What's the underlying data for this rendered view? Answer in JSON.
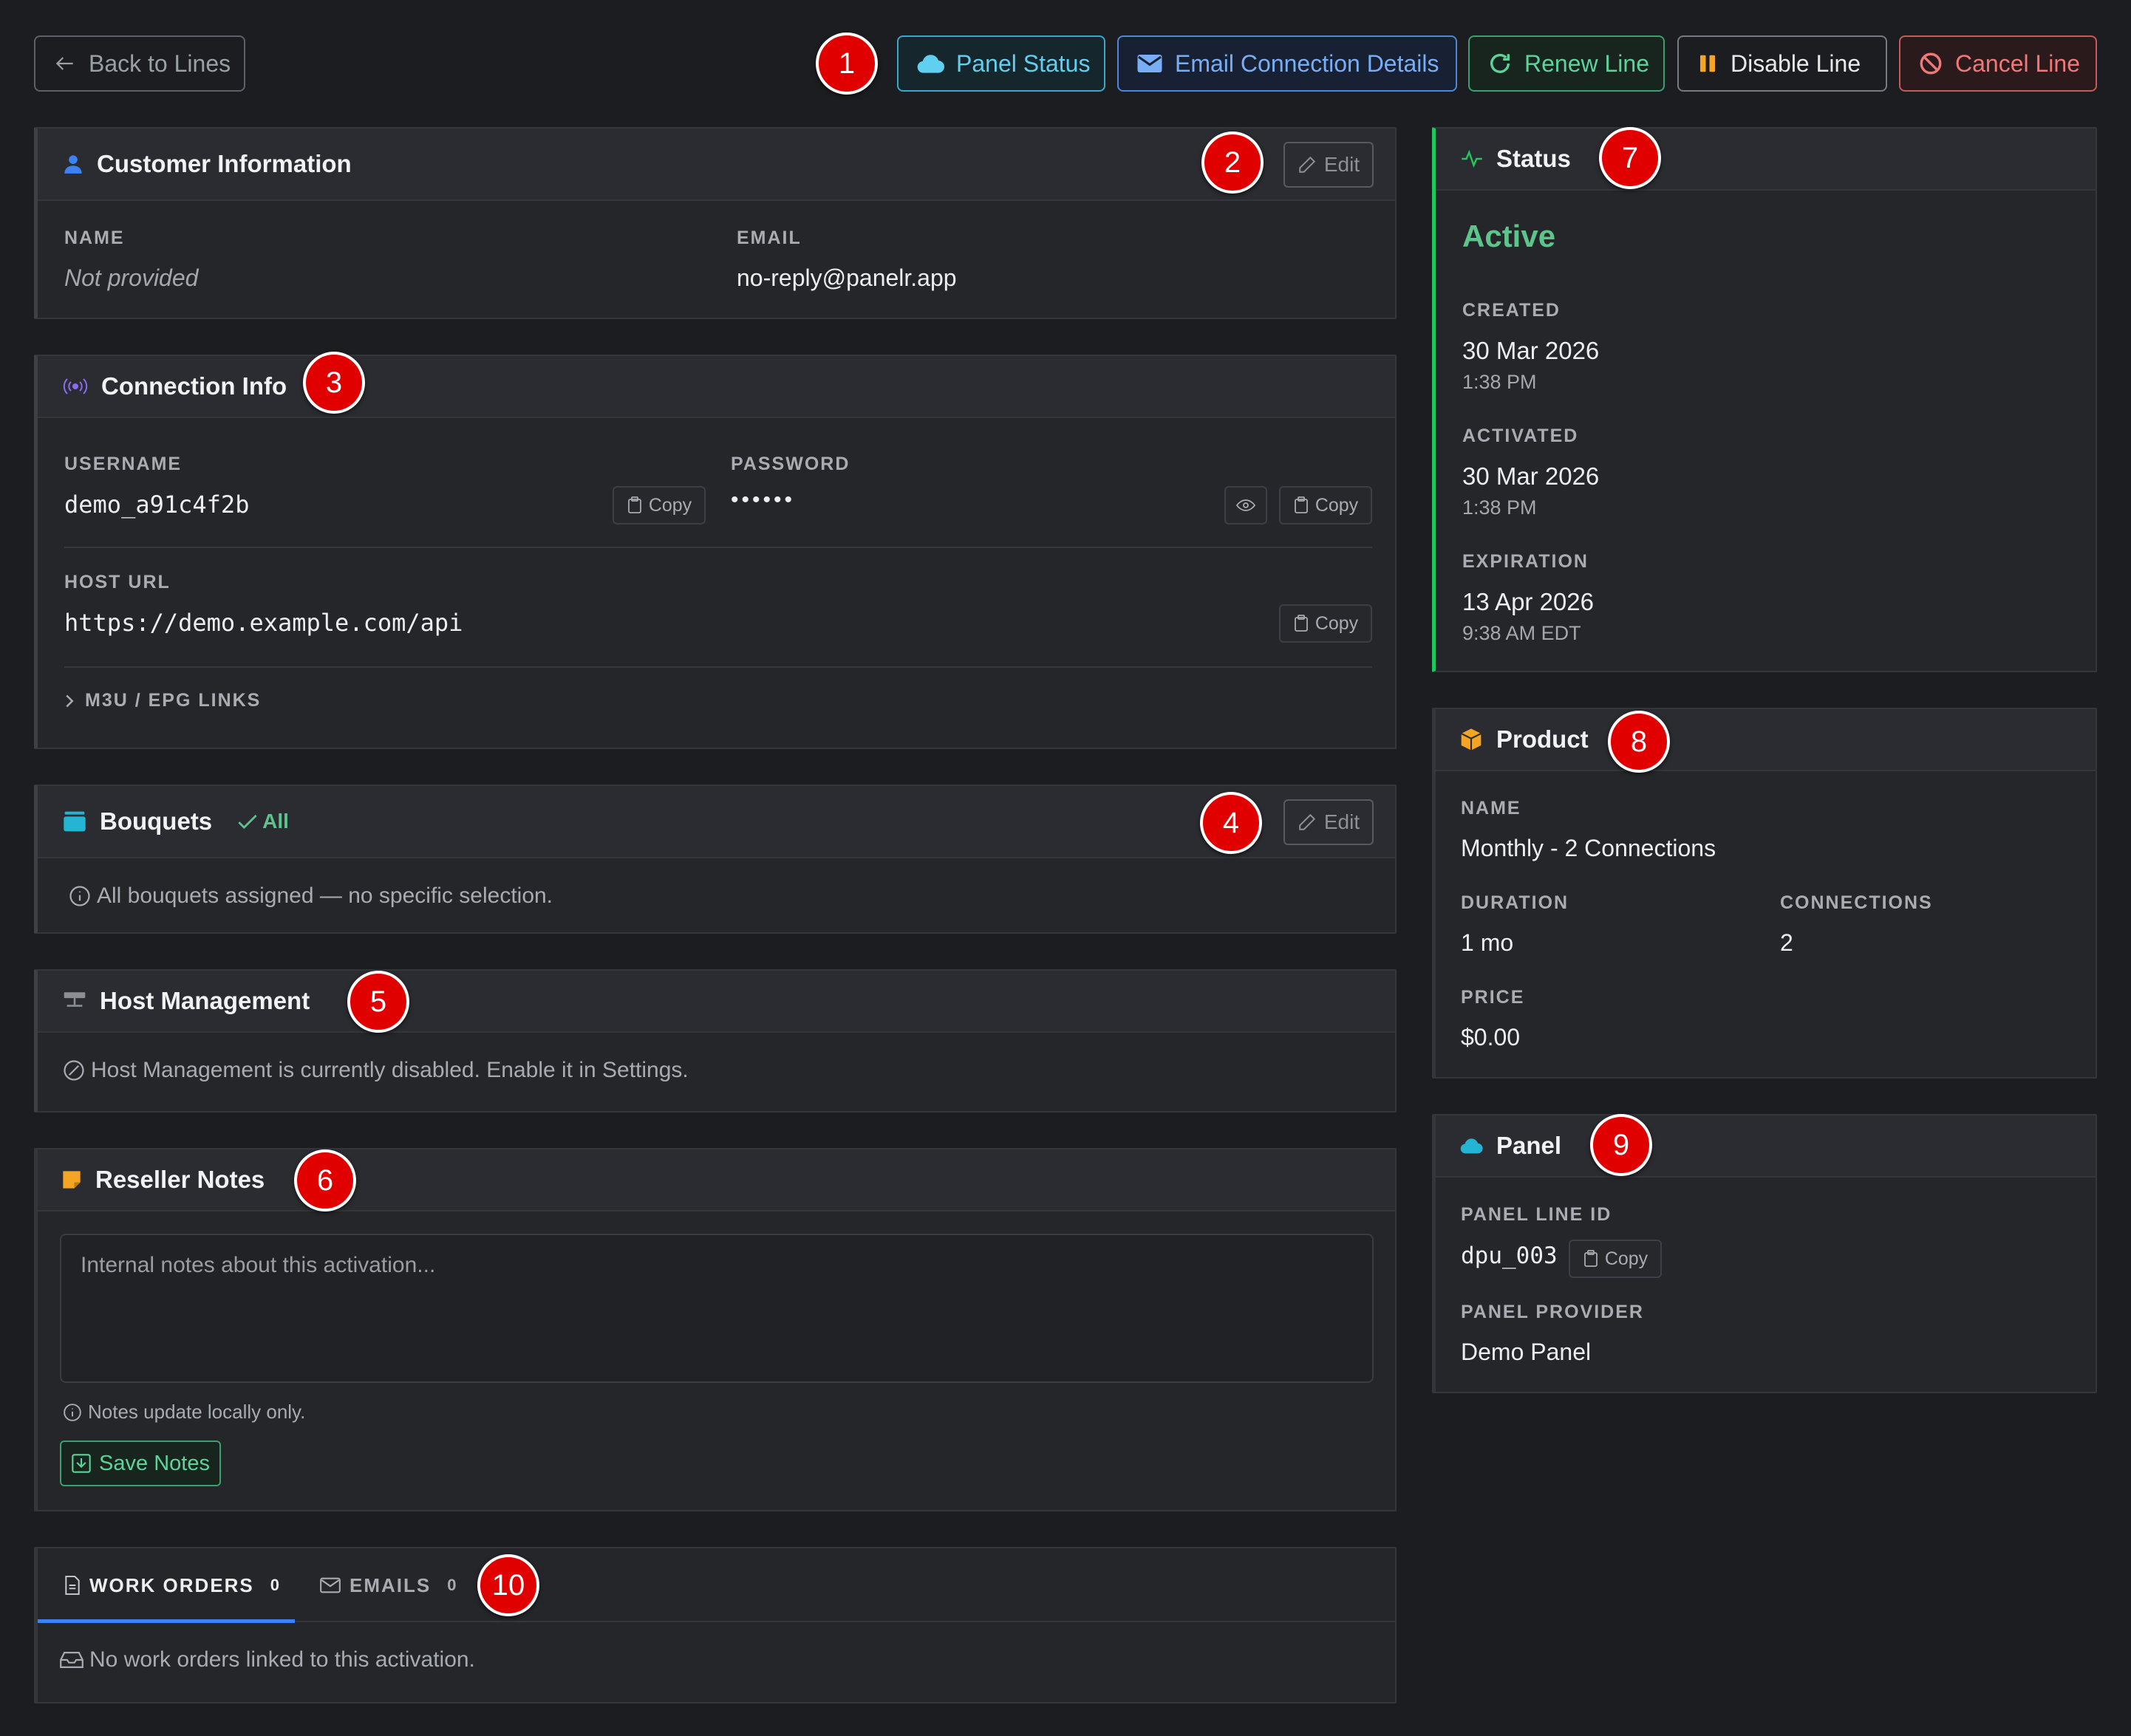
{
  "toolbar": {
    "back_label": "Back to Lines",
    "panel_status_label": "Panel Status",
    "email_label": "Email Connection Details",
    "renew_label": "Renew Line",
    "disable_label": "Disable Line",
    "cancel_label": "Cancel Line"
  },
  "markers": [
    "1",
    "2",
    "3",
    "4",
    "5",
    "6",
    "7",
    "8",
    "9",
    "10"
  ],
  "customer": {
    "title": "Customer Information",
    "edit_label": "Edit",
    "name_label": "NAME",
    "name_value": "Not provided",
    "email_label": "EMAIL",
    "email_value": "no-reply@panelr.app"
  },
  "connection": {
    "title": "Connection Info",
    "username_label": "USERNAME",
    "username_value": "demo_a91c4f2b",
    "password_label": "PASSWORD",
    "password_value": "••••••",
    "host_label": "HOST URL",
    "host_value": "https://demo.example.com/api",
    "copy_label": "Copy",
    "m3u_label": "M3U / EPG LINKS"
  },
  "bouquets": {
    "title": "Bouquets",
    "badge": "All",
    "edit_label": "Edit",
    "info": "All bouquets assigned — no specific selection."
  },
  "host_mgmt": {
    "title": "Host Management",
    "info": "Host Management is currently disabled. Enable it in Settings."
  },
  "notes": {
    "title": "Reseller Notes",
    "placeholder": "Internal notes about this activation...",
    "hint": "Notes update locally only.",
    "save_label": "Save Notes"
  },
  "tabs": {
    "work_orders_label": "WORK ORDERS",
    "work_orders_count": "0",
    "emails_label": "EMAILS",
    "emails_count": "0",
    "empty": "No work orders linked to this activation."
  },
  "status": {
    "title": "Status",
    "state": "Active",
    "created_label": "CREATED",
    "created_date": "30 Mar 2026",
    "created_time": "1:38 PM",
    "activated_label": "ACTIVATED",
    "activated_date": "30 Mar 2026",
    "activated_time": "1:38 PM",
    "expiration_label": "EXPIRATION",
    "expiration_date": "13 Apr 2026",
    "expiration_time": "9:38 AM EDT"
  },
  "product": {
    "title": "Product",
    "name_label": "NAME",
    "name_value": "Monthly - 2 Connections",
    "duration_label": "DURATION",
    "duration_value": "1 mo",
    "connections_label": "CONNECTIONS",
    "connections_value": "2",
    "price_label": "PRICE",
    "price_value": "$0.00"
  },
  "panel": {
    "title": "Panel",
    "line_id_label": "PANEL LINE ID",
    "line_id_value": "dpu_003",
    "copy_label": "Copy",
    "provider_label": "PANEL PROVIDER",
    "provider_value": "Demo Panel"
  },
  "colors": {
    "background": "#1c1d20",
    "card": "#24262a",
    "active_green": "#5dc48c",
    "accent_blue": "#3b82f6",
    "marker_red": "#e00000"
  }
}
